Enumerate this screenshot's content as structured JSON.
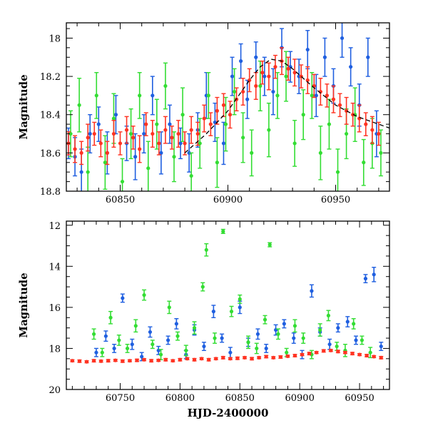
{
  "chart_data": [
    {
      "type": "scatter",
      "panel": "top",
      "title": "",
      "xlabel": "",
      "ylabel": "Magnitude",
      "xlim": [
        60825,
        60975
      ],
      "ylim": [
        17.92,
        18.8
      ],
      "y_inverted": true,
      "grid": false,
      "xticks": [
        60850,
        60900,
        60950
      ],
      "xtick_labels": [
        "60850",
        "60900",
        "60950"
      ],
      "yticks": [
        18.0,
        18.2,
        18.4,
        18.6,
        18.8
      ],
      "ytick_labels": [
        "18",
        "18.2",
        "18.4",
        "18.6",
        "18.8"
      ],
      "model_curve": {
        "name": "fit",
        "style": "dashed",
        "color": "#000000",
        "x": [
          60880,
          60890,
          60900,
          60910,
          60915,
          60920,
          60925,
          60930,
          60940,
          60950,
          60960,
          60975
        ],
        "y": [
          18.6,
          18.5,
          18.38,
          18.22,
          18.15,
          18.11,
          18.12,
          18.16,
          18.26,
          18.35,
          18.41,
          18.47
        ]
      },
      "series": [
        {
          "name": "blue",
          "color": "#1f5fe0",
          "x": [
            60826,
            60829,
            60832,
            60836,
            60840,
            60844,
            60848,
            60853,
            60857,
            60861,
            60865,
            60869,
            60873,
            60878,
            60882,
            60886,
            60890,
            60894,
            60898,
            60902,
            60906,
            60909,
            60913,
            60917,
            60921,
            60925,
            60929,
            60933,
            60937,
            60941,
            60945,
            60949,
            60953,
            60957,
            60961,
            60965,
            60969
          ],
          "y": [
            18.55,
            18.62,
            18.7,
            18.5,
            18.45,
            18.6,
            18.4,
            18.55,
            18.62,
            18.5,
            18.3,
            18.6,
            18.45,
            18.55,
            18.6,
            18.48,
            18.3,
            18.44,
            18.55,
            18.2,
            18.12,
            18.32,
            18.1,
            18.2,
            18.28,
            18.05,
            18.15,
            18.2,
            18.06,
            18.3,
            18.1,
            18.25,
            18.0,
            18.15,
            18.35,
            18.1,
            18.5
          ],
          "err": [
            0.08,
            0.1,
            0.12,
            0.1,
            0.09,
            0.11,
            0.1,
            0.09,
            0.12,
            0.1,
            0.1,
            0.11,
            0.1,
            0.08,
            0.1,
            0.09,
            0.12,
            0.1,
            0.11,
            0.1,
            0.09,
            0.1,
            0.08,
            0.1,
            0.12,
            0.1,
            0.08,
            0.09,
            0.1,
            0.11,
            0.1,
            0.09,
            0.1,
            0.1,
            0.11,
            0.1,
            0.12
          ]
        },
        {
          "name": "green",
          "color": "#33dd33",
          "x": [
            60827,
            60831,
            60835,
            60839,
            60843,
            60847,
            60851,
            60855,
            60859,
            60863,
            60867,
            60871,
            60875,
            60879,
            60883,
            60887,
            60891,
            60895,
            60899,
            60903,
            60907,
            60911,
            60915,
            60919,
            60923,
            60927,
            60931,
            60935,
            60939,
            60943,
            60947,
            60951,
            60955,
            60959,
            60963,
            60967,
            60971
          ],
          "y": [
            18.5,
            18.35,
            18.7,
            18.3,
            18.65,
            18.42,
            18.75,
            18.5,
            18.3,
            18.68,
            18.45,
            18.25,
            18.62,
            18.4,
            18.72,
            18.55,
            18.3,
            18.65,
            18.45,
            18.28,
            18.52,
            18.6,
            18.25,
            18.48,
            18.3,
            18.2,
            18.55,
            18.4,
            18.3,
            18.6,
            18.45,
            18.7,
            18.5,
            18.4,
            18.65,
            18.55,
            18.6
          ],
          "err": [
            0.12,
            0.14,
            0.13,
            0.12,
            0.14,
            0.13,
            0.12,
            0.13,
            0.12,
            0.14,
            0.13,
            0.12,
            0.13,
            0.14,
            0.12,
            0.13,
            0.12,
            0.13,
            0.14,
            0.12,
            0.13,
            0.12,
            0.13,
            0.14,
            0.12,
            0.13,
            0.12,
            0.13,
            0.12,
            0.14,
            0.13,
            0.12,
            0.13,
            0.14,
            0.12,
            0.13,
            0.12
          ]
        },
        {
          "name": "red",
          "color": "#ff3322",
          "x": [
            60826,
            60829,
            60832,
            60835,
            60838,
            60841,
            60844,
            60847,
            60850,
            60853,
            60856,
            60859,
            60862,
            60865,
            60868,
            60871,
            60874,
            60877,
            60880,
            60883,
            60886,
            60889,
            60892,
            60895,
            60898,
            60901,
            60904,
            60907,
            60910,
            60913,
            60916,
            60919,
            60922,
            60925,
            60928,
            60931,
            60934,
            60937,
            60940,
            60943,
            60946,
            60949,
            60952,
            60955,
            60958,
            60961,
            60964,
            60967,
            60970
          ],
          "y": [
            18.55,
            18.58,
            18.6,
            18.52,
            18.5,
            18.55,
            18.6,
            18.5,
            18.55,
            18.48,
            18.52,
            18.58,
            18.45,
            18.5,
            18.55,
            18.48,
            18.52,
            18.5,
            18.55,
            18.48,
            18.5,
            18.42,
            18.45,
            18.38,
            18.35,
            18.4,
            18.32,
            18.28,
            18.22,
            18.25,
            18.18,
            18.2,
            18.15,
            18.12,
            18.16,
            18.18,
            18.2,
            18.22,
            18.25,
            18.28,
            18.3,
            18.32,
            18.35,
            18.38,
            18.4,
            18.42,
            18.45,
            18.48,
            18.5
          ],
          "err": [
            0.06,
            0.07,
            0.06,
            0.07,
            0.06,
            0.07,
            0.06,
            0.07,
            0.06,
            0.07,
            0.06,
            0.07,
            0.06,
            0.07,
            0.06,
            0.07,
            0.06,
            0.07,
            0.06,
            0.07,
            0.06,
            0.07,
            0.06,
            0.07,
            0.06,
            0.07,
            0.06,
            0.07,
            0.06,
            0.07,
            0.06,
            0.07,
            0.06,
            0.07,
            0.06,
            0.07,
            0.06,
            0.07,
            0.06,
            0.07,
            0.06,
            0.07,
            0.06,
            0.07,
            0.06,
            0.07,
            0.06,
            0.07,
            0.06
          ]
        }
      ]
    },
    {
      "type": "scatter",
      "panel": "bottom",
      "title": "",
      "xlabel": "HJD-2400000",
      "ylabel": "Magnitude",
      "xlim": [
        60705,
        60975
      ],
      "ylim": [
        11.8,
        20.0
      ],
      "y_inverted": true,
      "grid": false,
      "xticks": [
        60750,
        60800,
        60850,
        60900,
        60950
      ],
      "xtick_labels": [
        "60750",
        "60800",
        "60850",
        "60900",
        "60950"
      ],
      "yticks": [
        12,
        14,
        16,
        18,
        20
      ],
      "ytick_labels": [
        "12",
        "14",
        "16",
        "18",
        "20"
      ],
      "series": [
        {
          "name": "blue",
          "color": "#1f5fe0",
          "x": [
            60730,
            60738,
            60745,
            60752,
            60760,
            60768,
            60775,
            60782,
            60790,
            60797,
            60805,
            60812,
            60820,
            60828,
            60835,
            60842,
            60850,
            60857,
            60865,
            60872,
            60880,
            60887,
            60895,
            60902,
            60910,
            60917,
            60925,
            60932,
            60940,
            60947,
            60955,
            60962,
            60968
          ],
          "y": [
            18.2,
            17.4,
            18.0,
            15.55,
            17.8,
            18.4,
            17.2,
            18.1,
            17.6,
            16.8,
            18.3,
            17.1,
            17.9,
            16.2,
            17.5,
            18.2,
            16.0,
            17.7,
            17.3,
            18.0,
            17.1,
            16.8,
            17.5,
            18.3,
            15.2,
            17.2,
            17.8,
            17.0,
            16.7,
            17.6,
            14.6,
            14.4,
            17.9
          ],
          "err": [
            0.2,
            0.25,
            0.2,
            0.2,
            0.25,
            0.2,
            0.25,
            0.2,
            0.2,
            0.25,
            0.2,
            0.25,
            0.2,
            0.3,
            0.2,
            0.25,
            0.3,
            0.2,
            0.25,
            0.2,
            0.25,
            0.2,
            0.25,
            0.2,
            0.3,
            0.2,
            0.25,
            0.2,
            0.25,
            0.2,
            0.2,
            0.35,
            0.2
          ]
        },
        {
          "name": "green",
          "color": "#33dd33",
          "x": [
            60728,
            60735,
            60742,
            60749,
            60756,
            60763,
            60770,
            60777,
            60784,
            60791,
            60798,
            60805,
            60812,
            60819,
            60822,
            60829,
            60836,
            60843,
            60850,
            60857,
            60864,
            60871,
            60875,
            60882,
            60889,
            60896,
            60903,
            60910,
            60917,
            60924,
            60931,
            60938,
            60945,
            60952,
            60959
          ],
          "y": [
            17.3,
            18.2,
            16.5,
            17.6,
            18.0,
            16.9,
            15.4,
            17.8,
            18.3,
            16.0,
            17.4,
            18.1,
            17.0,
            15.0,
            13.2,
            17.5,
            12.3,
            16.2,
            15.6,
            17.7,
            18.0,
            16.6,
            12.95,
            17.3,
            18.2,
            16.9,
            17.5,
            18.3,
            17.1,
            16.4,
            17.9,
            18.1,
            16.8,
            17.6,
            18.2
          ],
          "err": [
            0.25,
            0.2,
            0.3,
            0.25,
            0.2,
            0.3,
            0.25,
            0.2,
            0.25,
            0.3,
            0.2,
            0.25,
            0.3,
            0.2,
            0.3,
            0.25,
            0.1,
            0.25,
            0.2,
            0.3,
            0.25,
            0.2,
            0.1,
            0.25,
            0.2,
            0.3,
            0.25,
            0.2,
            0.3,
            0.25,
            0.2,
            0.3,
            0.25,
            0.2,
            0.25
          ]
        },
        {
          "name": "red",
          "color": "#ff3322",
          "x": [
            60710,
            60716,
            60722,
            60728,
            60734,
            60740,
            60746,
            60752,
            60758,
            60764,
            60770,
            60776,
            60782,
            60788,
            60794,
            60800,
            60806,
            60812,
            60818,
            60824,
            60830,
            60836,
            60842,
            60848,
            60854,
            60860,
            60866,
            60872,
            60878,
            60884,
            60890,
            60896,
            60902,
            60908,
            60914,
            60920,
            60926,
            60932,
            60938,
            60944,
            60950,
            60956,
            60962,
            60968
          ],
          "y": [
            18.6,
            18.62,
            18.65,
            18.6,
            18.62,
            18.6,
            18.58,
            18.62,
            18.6,
            18.58,
            18.55,
            18.6,
            18.58,
            18.55,
            18.6,
            18.55,
            18.5,
            18.55,
            18.5,
            18.55,
            18.5,
            18.45,
            18.5,
            18.48,
            18.45,
            18.5,
            18.45,
            18.4,
            18.45,
            18.42,
            18.38,
            18.35,
            18.3,
            18.25,
            18.2,
            18.12,
            18.1,
            18.15,
            18.2,
            18.25,
            18.3,
            18.35,
            18.4,
            18.45
          ],
          "err": [
            0.05,
            0.06,
            0.05,
            0.06,
            0.05,
            0.06,
            0.05,
            0.06,
            0.05,
            0.06,
            0.05,
            0.06,
            0.05,
            0.06,
            0.05,
            0.06,
            0.05,
            0.06,
            0.05,
            0.06,
            0.05,
            0.06,
            0.05,
            0.06,
            0.05,
            0.06,
            0.05,
            0.06,
            0.05,
            0.06,
            0.05,
            0.06,
            0.05,
            0.06,
            0.05,
            0.06,
            0.05,
            0.06,
            0.05,
            0.06,
            0.05,
            0.06,
            0.05,
            0.06
          ]
        }
      ]
    }
  ]
}
